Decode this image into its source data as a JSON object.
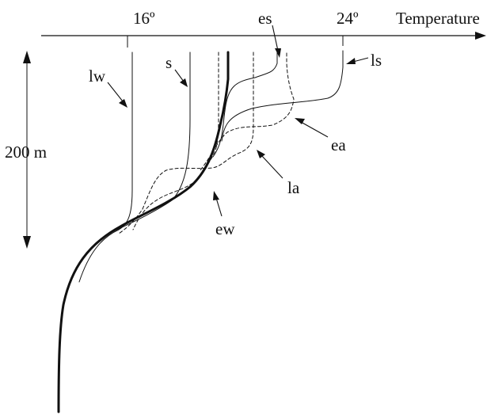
{
  "axis": {
    "title": "Temperature",
    "ticks": [
      "16º",
      "24º"
    ]
  },
  "depth_scale": {
    "label": "200 m"
  },
  "profiles": [
    {
      "label": "lw",
      "style": "solid"
    },
    {
      "label": "s",
      "style": "solid"
    },
    {
      "label": "es",
      "style": "solid"
    },
    {
      "label": "ls",
      "style": "solid"
    },
    {
      "label": "ea",
      "style": "dashed"
    },
    {
      "label": "la",
      "style": "dashed"
    },
    {
      "label": "ew",
      "style": "thick"
    }
  ]
}
